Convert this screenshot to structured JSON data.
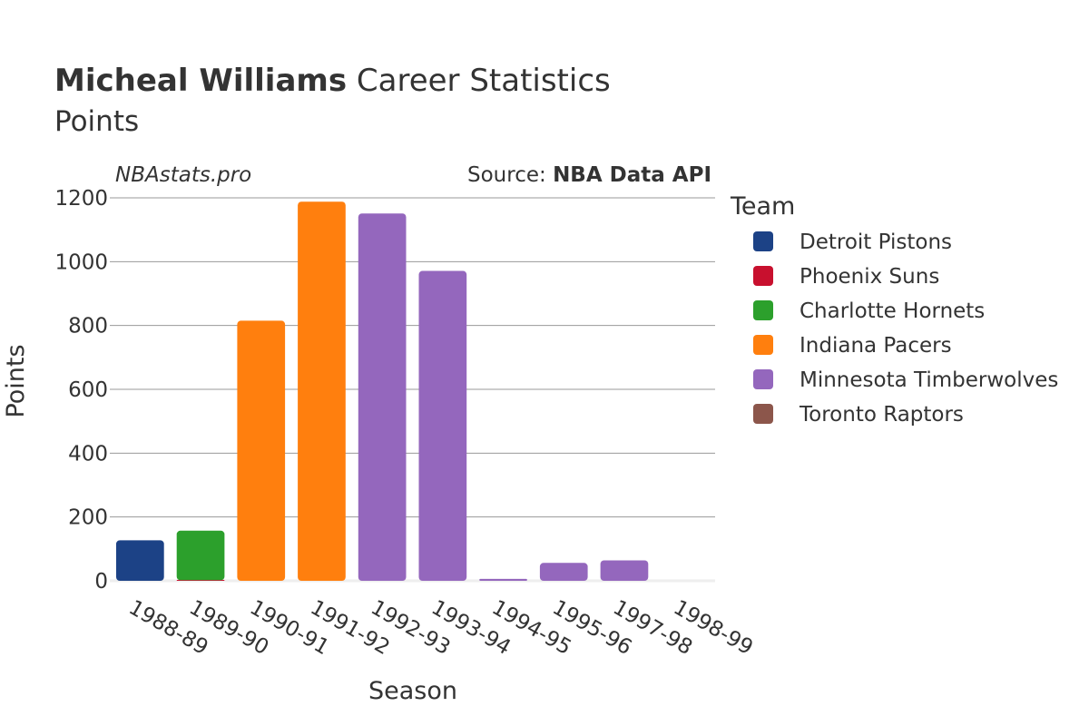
{
  "title": {
    "player": "Micheal Williams",
    "suffix": " Career Statistics",
    "subtitle": "Points"
  },
  "watermark": "NBAstats.pro",
  "source": {
    "label": "Source: ",
    "value": "NBA Data API"
  },
  "legend": {
    "title": "Team",
    "items": [
      {
        "name": "Detroit Pistons",
        "color": "#1c4286"
      },
      {
        "name": "Phoenix Suns",
        "color": "#c8102e"
      },
      {
        "name": "Charlotte Hornets",
        "color": "#2ca02c"
      },
      {
        "name": "Indiana Pacers",
        "color": "#ff7f0e"
      },
      {
        "name": "Minnesota Timberwolves",
        "color": "#9467bd"
      },
      {
        "name": "Toronto Raptors",
        "color": "#8c564b"
      }
    ]
  },
  "chart_data": {
    "type": "bar",
    "title": "Micheal Williams Career Statistics",
    "subtitle": "Points",
    "xlabel": "Season",
    "ylabel": "Points",
    "ylim": [
      0,
      1200
    ],
    "yticks": [
      0,
      200,
      400,
      600,
      800,
      1000,
      1200
    ],
    "grid": true,
    "legend_position": "right",
    "categories": [
      "1988-89",
      "1989-90",
      "1990-91",
      "1991-92",
      "1992-93",
      "1993-94",
      "1994-95",
      "1995-96",
      "1997-98",
      "1998-99"
    ],
    "bars": [
      {
        "season": "1988-89",
        "segments": [
          {
            "team": "Detroit Pistons",
            "value": 127
          }
        ]
      },
      {
        "season": "1989-90",
        "segments": [
          {
            "team": "Phoenix Suns",
            "value": 2
          },
          {
            "team": "Charlotte Hornets",
            "value": 155
          }
        ]
      },
      {
        "season": "1990-91",
        "segments": [
          {
            "team": "Indiana Pacers",
            "value": 815
          }
        ]
      },
      {
        "season": "1991-92",
        "segments": [
          {
            "team": "Indiana Pacers",
            "value": 1188
          }
        ]
      },
      {
        "season": "1992-93",
        "segments": [
          {
            "team": "Minnesota Timberwolves",
            "value": 1151
          }
        ]
      },
      {
        "season": "1993-94",
        "segments": [
          {
            "team": "Minnesota Timberwolves",
            "value": 971
          }
        ]
      },
      {
        "season": "1994-95",
        "segments": [
          {
            "team": "Minnesota Timberwolves",
            "value": 6
          }
        ]
      },
      {
        "season": "1995-96",
        "segments": [
          {
            "team": "Minnesota Timberwolves",
            "value": 56
          }
        ]
      },
      {
        "season": "1997-98",
        "segments": [
          {
            "team": "Minnesota Timberwolves",
            "value": 64
          }
        ]
      },
      {
        "season": "1998-99",
        "segments": [
          {
            "team": "Toronto Raptors",
            "value": 0
          }
        ]
      }
    ]
  }
}
